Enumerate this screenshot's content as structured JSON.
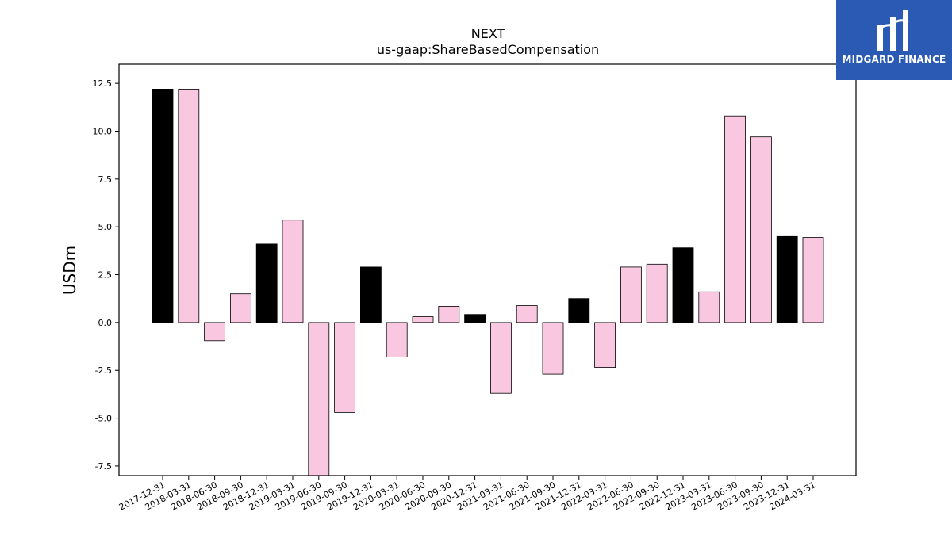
{
  "brand": {
    "name": "MIDGARD FINANCE",
    "color": "#2a5ab4"
  },
  "chart_data": {
    "type": "bar",
    "title": "NEXT",
    "subtitle": "us-gaap:ShareBasedCompensation",
    "xlabel": "",
    "ylabel": "USDm",
    "ylim": [
      -8.0,
      13.5
    ],
    "yticks": [
      -7.5,
      -5.0,
      -2.5,
      0.0,
      2.5,
      5.0,
      7.5,
      10.0,
      12.5
    ],
    "grid": false,
    "colors": {
      "year_end": "#000000",
      "quarter": "#f9c8e0",
      "edge": "#000000"
    },
    "categories": [
      "2017-12-31",
      "2018-03-31",
      "2018-06-30",
      "2018-09-30",
      "2018-12-31",
      "2019-03-31",
      "2019-06-30",
      "2019-09-30",
      "2019-12-31",
      "2020-03-31",
      "2020-06-30",
      "2020-09-30",
      "2020-12-31",
      "2021-03-31",
      "2021-06-30",
      "2021-09-30",
      "2021-12-31",
      "2022-03-31",
      "2022-06-30",
      "2022-09-30",
      "2022-12-31",
      "2023-03-31",
      "2023-06-30",
      "2023-09-30",
      "2023-12-31",
      "2024-03-31"
    ],
    "values": [
      12.2,
      12.2,
      -0.95,
      1.5,
      4.1,
      5.35,
      -8.0,
      -4.7,
      2.9,
      -1.8,
      0.3,
      0.85,
      0.42,
      -3.7,
      0.88,
      -2.7,
      1.25,
      -2.35,
      2.9,
      3.05,
      3.9,
      1.6,
      10.8,
      9.7,
      4.5,
      4.45
    ]
  }
}
